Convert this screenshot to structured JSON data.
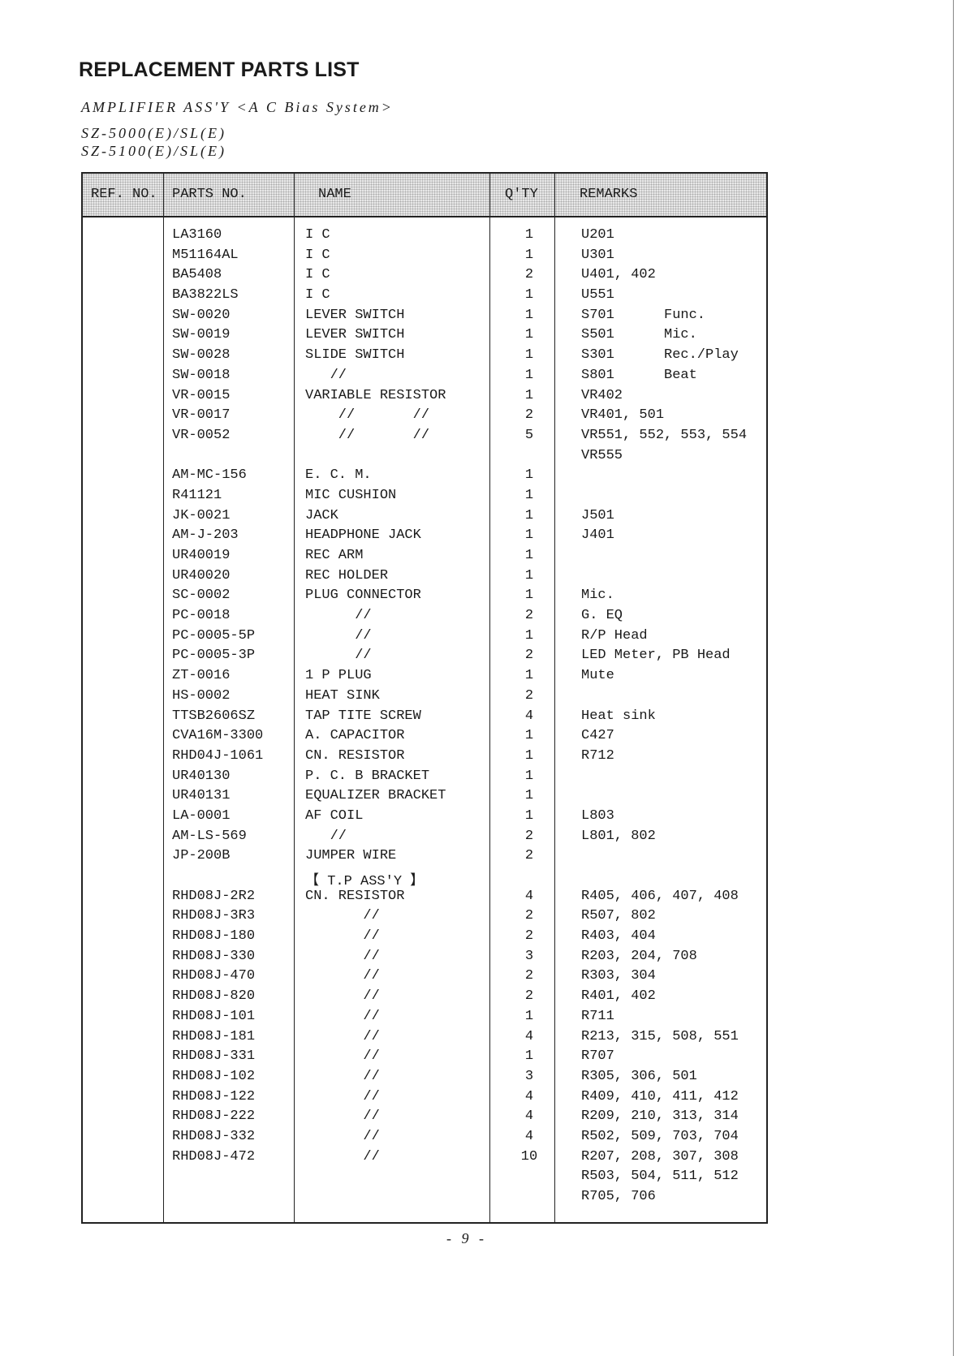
{
  "title": "REPLACEMENT PARTS LIST",
  "subtitle": "AMPLIFIER ASS'Y  <A C  Bias System>",
  "models": [
    "SZ-5000(E)/SL(E)",
    "SZ-5100(E)/SL(E)"
  ],
  "headers": {
    "ref": "REF. NO.",
    "parts": "PARTS NO.",
    "name": "NAME",
    "qty": "Q'TY",
    "remarks": "REMARKS"
  },
  "rows": [
    [
      "LA3160",
      "I C",
      "1",
      "U201",
      ""
    ],
    [
      "M51164AL",
      "I C",
      "1",
      "U301",
      ""
    ],
    [
      "BA5408",
      "I C",
      "2",
      "U401, 402",
      ""
    ],
    [
      "BA3822LS",
      "I C",
      "1",
      "U551",
      ""
    ],
    [
      "SW-0020",
      "LEVER SWITCH",
      "1",
      "S701",
      "Func."
    ],
    [
      "SW-0019",
      "LEVER SWITCH",
      "1",
      "S501",
      "Mic."
    ],
    [
      "SW-0028",
      "SLIDE SWITCH",
      "1",
      "S301",
      "Rec./Play"
    ],
    [
      "SW-0018",
      "   //",
      "1",
      "S801",
      "Beat"
    ],
    [
      "VR-0015",
      "VARIABLE RESISTOR",
      "1",
      "VR402",
      ""
    ],
    [
      "VR-0017",
      "    //       //",
      "2",
      "VR401, 501",
      ""
    ],
    [
      "VR-0052",
      "    //       //",
      "5",
      "VR551, 552, 553, 554",
      ""
    ],
    [
      "",
      "",
      "",
      "VR555",
      ""
    ],
    [
      "AM-MC-156",
      "E. C. M.",
      "1",
      "",
      ""
    ],
    [
      "R41121",
      "MIC CUSHION",
      "1",
      "",
      ""
    ],
    [
      "JK-0021",
      "JACK",
      "1",
      "J501",
      ""
    ],
    [
      "AM-J-203",
      "HEADPHONE JACK",
      "1",
      "J401",
      ""
    ],
    [
      "UR40019",
      "REC ARM",
      "1",
      "",
      ""
    ],
    [
      "UR40020",
      "REC HOLDER",
      "1",
      "",
      ""
    ],
    [
      "SC-0002",
      "PLUG CONNECTOR",
      "1",
      "Mic.",
      ""
    ],
    [
      "PC-0018",
      "      //",
      "2",
      "G. EQ",
      ""
    ],
    [
      "PC-0005-5P",
      "      //",
      "1",
      "R/P Head",
      ""
    ],
    [
      "PC-0005-3P",
      "      //",
      "2",
      "LED Meter, PB Head",
      ""
    ],
    [
      "ZT-0016",
      "1 P PLUG",
      "1",
      "Mute",
      ""
    ],
    [
      "HS-0002",
      "HEAT SINK",
      "2",
      "",
      ""
    ],
    [
      "TTSB2606SZ",
      "TAP TITE SCREW",
      "4",
      "Heat sink",
      ""
    ],
    [
      "CVA16M-3300",
      "A. CAPACITOR",
      "1",
      "C427",
      ""
    ],
    [
      "RHD04J-1061",
      "CN. RESISTOR",
      "1",
      "R712",
      ""
    ],
    [
      "UR40130",
      "P. C. B BRACKET",
      "1",
      "",
      ""
    ],
    [
      "UR40131",
      "EQUALIZER BRACKET",
      "1",
      "",
      ""
    ],
    [
      "LA-0001",
      "AF COIL",
      "1",
      "L803",
      ""
    ],
    [
      "AM-LS-569",
      "   //",
      "2",
      "L801, 802",
      ""
    ],
    [
      "JP-200B",
      "JUMPER WIRE",
      "2",
      "",
      ""
    ],
    [
      "",
      "【 T.P ASS'Y 】",
      "",
      "",
      ""
    ],
    [
      "RHD08J-2R2",
      "CN. RESISTOR",
      "4",
      "R405, 406, 407, 408",
      ""
    ],
    [
      "RHD08J-3R3",
      "       //",
      "2",
      "R507, 802",
      ""
    ],
    [
      "RHD08J-180",
      "       //",
      "2",
      "R403, 404",
      ""
    ],
    [
      "RHD08J-330",
      "       //",
      "3",
      "R203, 204, 708",
      ""
    ],
    [
      "RHD08J-470",
      "       //",
      "2",
      "R303, 304",
      ""
    ],
    [
      "RHD08J-820",
      "       //",
      "2",
      "R401, 402",
      ""
    ],
    [
      "RHD08J-101",
      "       //",
      "1",
      "R711",
      ""
    ],
    [
      "RHD08J-181",
      "       //",
      "4",
      "R213, 315, 508, 551",
      ""
    ],
    [
      "RHD08J-331",
      "       //",
      "1",
      "R707",
      ""
    ],
    [
      "RHD08J-102",
      "       //",
      "3",
      "R305, 306, 501",
      ""
    ],
    [
      "RHD08J-122",
      "       //",
      "4",
      "R409, 410, 411, 412",
      ""
    ],
    [
      "RHD08J-222",
      "       //",
      "4",
      "R209, 210, 313, 314",
      ""
    ],
    [
      "RHD08J-332",
      "       //",
      "4",
      "R502, 509, 703, 704",
      ""
    ],
    [
      "RHD08J-472",
      "       //",
      "10",
      "R207, 208, 307, 308",
      ""
    ],
    [
      "",
      "",
      "",
      "R503, 504, 511, 512",
      ""
    ],
    [
      "",
      "",
      "",
      "R705, 706",
      ""
    ]
  ],
  "footer": "- 9 -"
}
